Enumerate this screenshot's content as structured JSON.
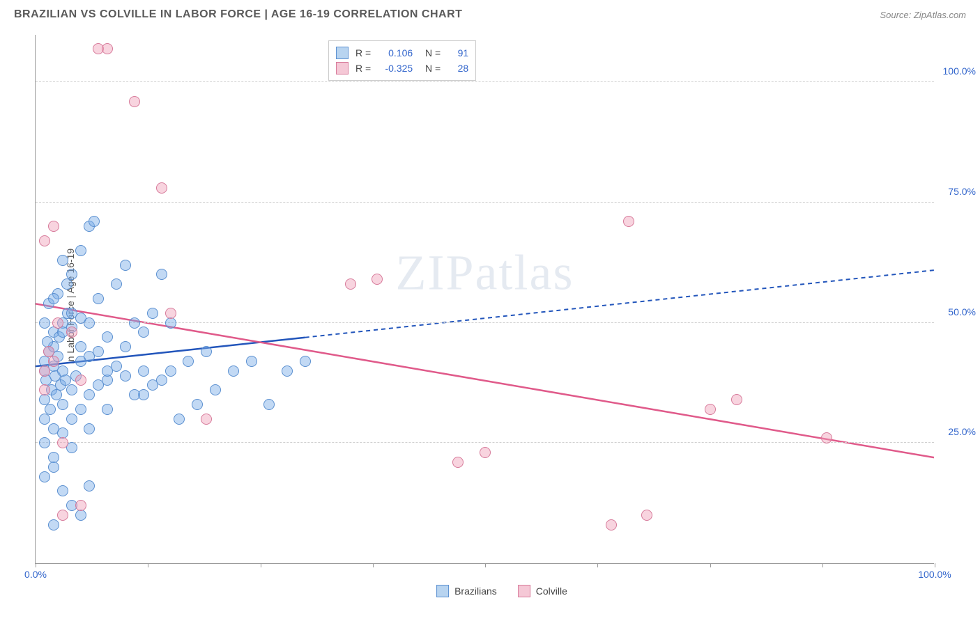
{
  "header": {
    "title": "BRAZILIAN VS COLVILLE IN LABOR FORCE | AGE 16-19 CORRELATION CHART",
    "source": "Source: ZipAtlas.com"
  },
  "chart": {
    "ylabel": "In Labor Force | Age 16-19",
    "xlim": [
      0,
      100
    ],
    "ylim": [
      0,
      110
    ],
    "xtick_positions": [
      0,
      12.5,
      25,
      37.5,
      50,
      62.5,
      75,
      87.5,
      100
    ],
    "xtick_labels": {
      "0": "0.0%",
      "100": "100.0%"
    },
    "ygrid_positions": [
      25,
      50,
      75,
      100
    ],
    "ytick_labels": {
      "25": "25.0%",
      "50": "50.0%",
      "75": "75.0%",
      "100": "100.0%"
    },
    "grid_color": "#d0d0d0",
    "axis_color": "#999999",
    "label_color": "#3366cc",
    "watermark": "ZIPatlas",
    "series": [
      {
        "name": "Brazilians",
        "fill": "rgba(120,170,230,0.45)",
        "stroke": "#5a8fd0",
        "swatch_fill": "#b8d4f0",
        "swatch_stroke": "#5a8fd0",
        "r_value": "0.106",
        "n_value": "91",
        "trend": {
          "x1": 0,
          "y1": 41,
          "x2": 30,
          "y2": 47,
          "x2_ext": 100,
          "y2_ext": 61,
          "solid_color": "#2255bb",
          "dash_color": "#2255bb"
        },
        "points": [
          [
            1,
            40
          ],
          [
            1,
            42
          ],
          [
            1.2,
            38
          ],
          [
            1.5,
            44
          ],
          [
            1.8,
            36
          ],
          [
            2,
            41
          ],
          [
            2,
            45
          ],
          [
            2.2,
            39
          ],
          [
            2.5,
            43
          ],
          [
            2.8,
            37
          ],
          [
            1,
            34
          ],
          [
            1.3,
            46
          ],
          [
            1.6,
            32
          ],
          [
            2,
            48
          ],
          [
            2.3,
            35
          ],
          [
            2.6,
            47
          ],
          [
            3,
            40
          ],
          [
            3,
            50
          ],
          [
            3.3,
            38
          ],
          [
            3.6,
            52
          ],
          [
            1,
            30
          ],
          [
            1.5,
            54
          ],
          [
            2,
            28
          ],
          [
            2.5,
            56
          ],
          [
            3,
            33
          ],
          [
            3.5,
            58
          ],
          [
            4,
            36
          ],
          [
            4,
            60
          ],
          [
            4.5,
            39
          ],
          [
            5,
            45
          ],
          [
            1,
            50
          ],
          [
            2,
            55
          ],
          [
            3,
            48
          ],
          [
            4,
            52
          ],
          [
            5,
            42
          ],
          [
            6,
            50
          ],
          [
            7,
            44
          ],
          [
            8,
            47
          ],
          [
            6,
            70
          ],
          [
            6.5,
            71
          ],
          [
            1,
            25
          ],
          [
            2,
            22
          ],
          [
            3,
            27
          ],
          [
            4,
            30
          ],
          [
            5,
            32
          ],
          [
            6,
            35
          ],
          [
            8,
            38
          ],
          [
            10,
            45
          ],
          [
            12,
            48
          ],
          [
            14,
            60
          ],
          [
            1,
            18
          ],
          [
            2,
            20
          ],
          [
            3,
            15
          ],
          [
            4,
            24
          ],
          [
            5,
            10
          ],
          [
            6,
            28
          ],
          [
            2,
            8
          ],
          [
            4,
            12
          ],
          [
            6,
            16
          ],
          [
            8,
            40
          ],
          [
            7,
            55
          ],
          [
            9,
            58
          ],
          [
            11,
            50
          ],
          [
            13,
            52
          ],
          [
            15,
            40
          ],
          [
            17,
            42
          ],
          [
            19,
            44
          ],
          [
            12,
            35
          ],
          [
            14,
            38
          ],
          [
            16,
            30
          ],
          [
            18,
            33
          ],
          [
            20,
            36
          ],
          [
            22,
            40
          ],
          [
            24,
            42
          ],
          [
            26,
            33
          ],
          [
            28,
            40
          ],
          [
            30,
            42
          ],
          [
            10,
            62
          ],
          [
            12,
            40
          ],
          [
            5,
            65
          ],
          [
            3,
            63
          ],
          [
            4,
            49
          ],
          [
            5,
            51
          ],
          [
            6,
            43
          ],
          [
            7,
            37
          ],
          [
            8,
            32
          ],
          [
            9,
            41
          ],
          [
            10,
            39
          ],
          [
            11,
            35
          ],
          [
            13,
            37
          ],
          [
            15,
            50
          ]
        ]
      },
      {
        "name": "Colville",
        "fill": "rgba(240,160,185,0.45)",
        "stroke": "#d77a9a",
        "swatch_fill": "#f5c8d6",
        "swatch_stroke": "#d77a9a",
        "r_value": "-0.325",
        "n_value": "28",
        "trend": {
          "x1": 0,
          "y1": 54,
          "x2": 100,
          "y2": 22,
          "solid_color": "#e05a8a"
        },
        "points": [
          [
            1,
            40
          ],
          [
            1,
            67
          ],
          [
            1.5,
            44
          ],
          [
            2,
            42
          ],
          [
            2,
            70
          ],
          [
            3,
            25
          ],
          [
            3,
            10
          ],
          [
            4,
            48
          ],
          [
            5,
            38
          ],
          [
            5,
            12
          ],
          [
            7,
            107
          ],
          [
            8,
            107
          ],
          [
            11,
            96
          ],
          [
            14,
            78
          ],
          [
            15,
            52
          ],
          [
            19,
            30
          ],
          [
            35,
            58
          ],
          [
            38,
            59
          ],
          [
            47,
            21
          ],
          [
            50,
            23
          ],
          [
            66,
            71
          ],
          [
            64,
            8
          ],
          [
            68,
            10
          ],
          [
            75,
            32
          ],
          [
            78,
            34
          ],
          [
            88,
            26
          ],
          [
            1,
            36
          ],
          [
            2.5,
            50
          ]
        ]
      }
    ],
    "marker_radius": 8,
    "marker_stroke_w": 1
  }
}
